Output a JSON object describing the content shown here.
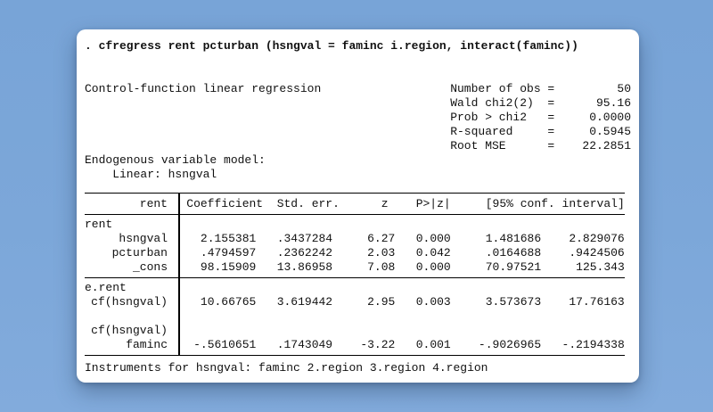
{
  "page": {
    "background_top": "#78a4d7",
    "background_bottom": "#82abdc",
    "card_background": "#ffffff",
    "text_color": "#111111"
  },
  "command": ". cfregress rent pcturban (hsngval = faminc i.region, interact(faminc))",
  "results": {
    "title": "Control-function linear regression",
    "equals": "=",
    "stats": [
      {
        "label": "Number of obs",
        "value": "50"
      },
      {
        "label": "Wald chi2(2)",
        "value": "95.16"
      },
      {
        "label": "Prob > chi2",
        "value": "0.0000"
      },
      {
        "label": "R-squared",
        "value": "0.5945"
      },
      {
        "label": "Root MSE",
        "value": "22.2851"
      }
    ],
    "endogenous_header": "Endogenous variable model:",
    "endogenous_detail": "    Linear: hsngval"
  },
  "table": {
    "depvar": "rent",
    "columns": [
      "Coefficient",
      "Std. err.",
      "z",
      "P>|z|",
      "[95% conf. interval]"
    ],
    "rows": [
      {
        "type": "group",
        "label": "rent"
      },
      {
        "type": "var",
        "label": "hsngval",
        "coef": "2.155381",
        "se": ".3437284",
        "z": "6.27",
        "p": "0.000",
        "ci_lo": "1.481686",
        "ci_hi": "2.829076"
      },
      {
        "type": "var",
        "label": "pcturban",
        "coef": ".4794597",
        "se": ".2362242",
        "z": "2.03",
        "p": "0.042",
        "ci_lo": ".0164688",
        "ci_hi": ".9424506"
      },
      {
        "type": "var",
        "label": "_cons",
        "coef": "98.15909",
        "se": "13.86958",
        "z": "7.08",
        "p": "0.000",
        "ci_lo": "70.97521",
        "ci_hi": "125.343"
      },
      {
        "type": "rule"
      },
      {
        "type": "group",
        "label": "e.rent"
      },
      {
        "type": "var",
        "label": "cf(hsngval)",
        "coef": "10.66765",
        "se": "3.619442",
        "z": "2.95",
        "p": "0.003",
        "ci_lo": "3.573673",
        "ci_hi": "17.76163"
      },
      {
        "type": "blank"
      },
      {
        "type": "group",
        "label": "cf(hsngval)"
      },
      {
        "type": "var",
        "label": "faminc",
        "coef": "-.5610651",
        "se": ".1743049",
        "z": "-3.22",
        "p": "0.001",
        "ci_lo": "-.9026965",
        "ci_hi": "-.2194338"
      }
    ]
  },
  "footer": "Instruments for hsngval: faminc 2.region 3.region 4.region"
}
